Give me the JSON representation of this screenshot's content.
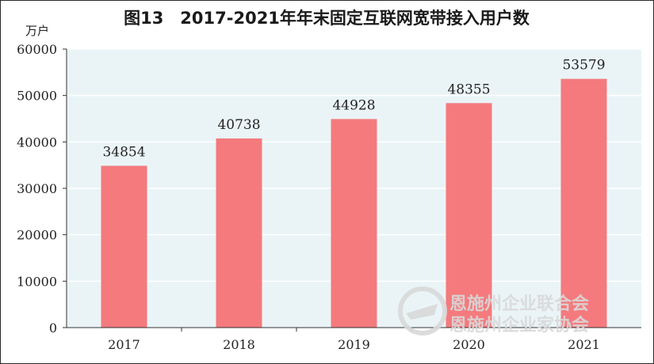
{
  "chart_data": {
    "type": "bar",
    "title": "图13　2017-2021年年末固定互联网宽带接入用户数",
    "ylabel": "万户",
    "xlabel": "",
    "categories": [
      "2017",
      "2018",
      "2019",
      "2020",
      "2021"
    ],
    "values": [
      34854,
      40738,
      44928,
      48355,
      53579
    ],
    "ylim": [
      0,
      60000
    ],
    "yticks": [
      0,
      10000,
      20000,
      30000,
      40000,
      50000,
      60000
    ],
    "grid": true,
    "bar_color": "#f47a7d",
    "plot_background": "#eaf4f7",
    "grid_color": "#ffffff"
  },
  "watermark": {
    "line1": "恩施州企业联合会",
    "line2": "恩施州企业家协会",
    "logo": "enterprise-association-logo"
  }
}
